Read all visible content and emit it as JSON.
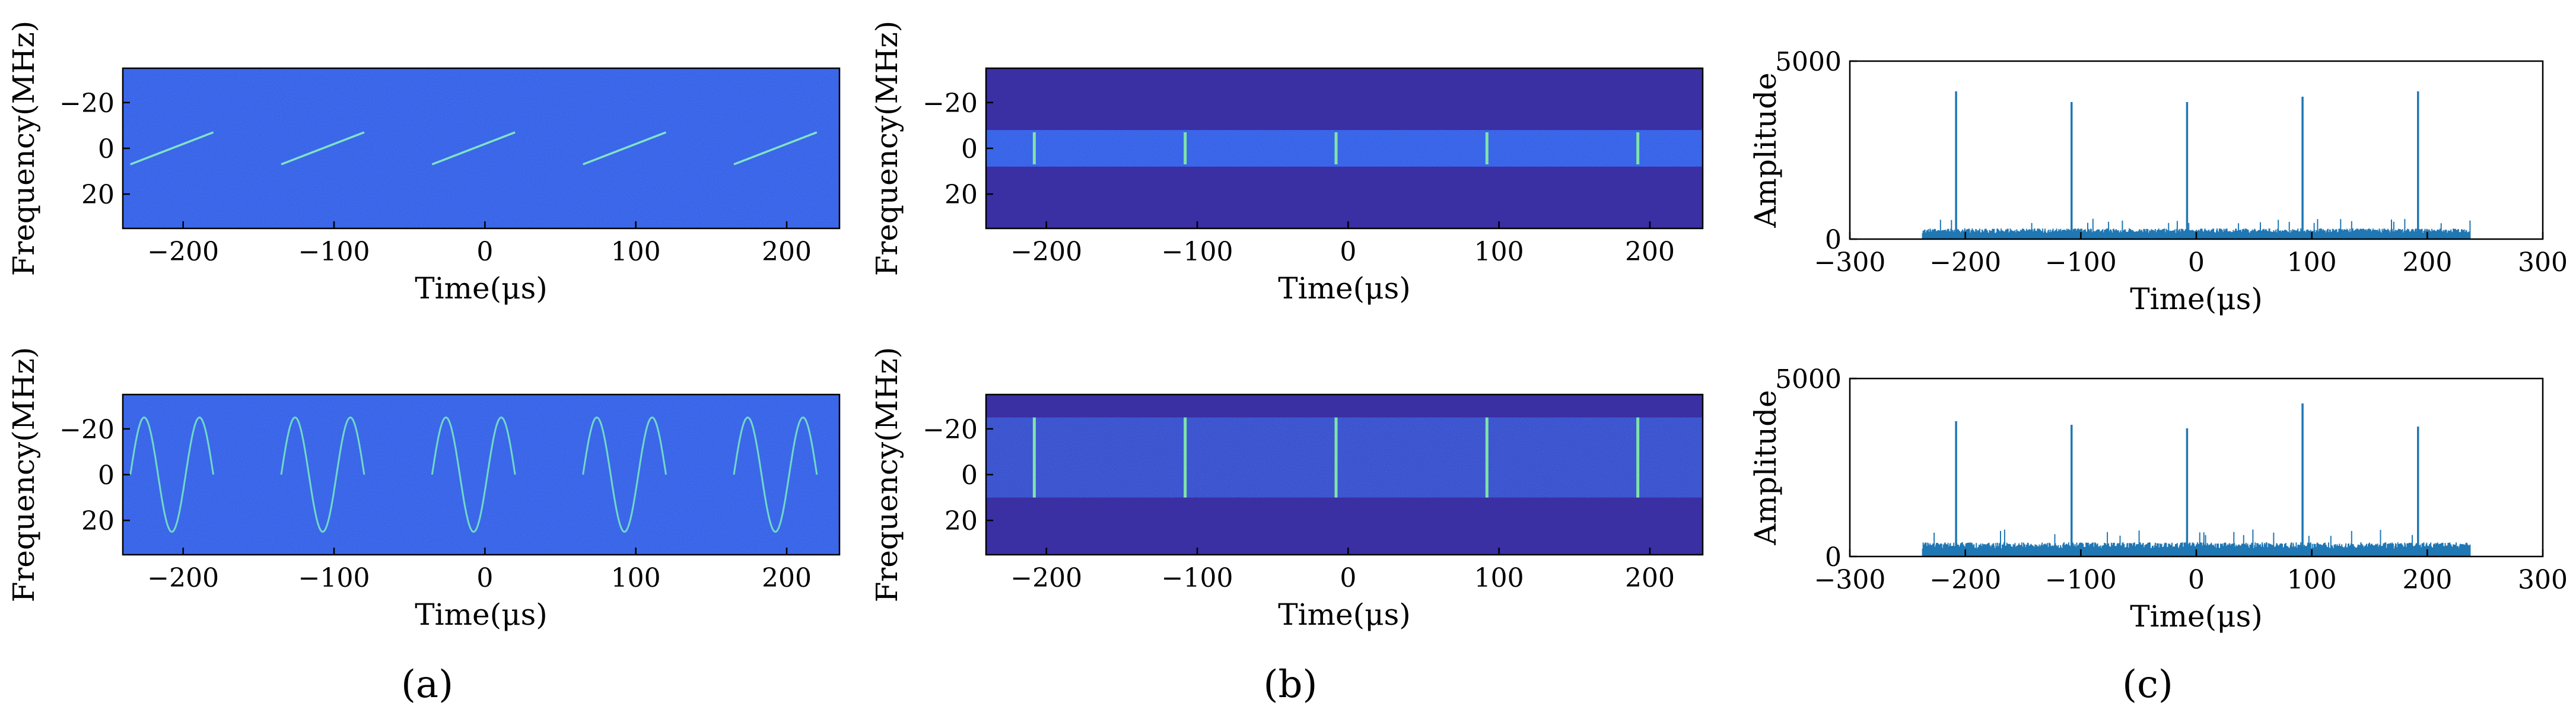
{
  "chart_data": [
    {
      "id": "a1",
      "type": "heatmap",
      "title": "",
      "xlabel": "Time(μs)",
      "ylabel": "Frequency(MHz)",
      "xlim": [
        -240,
        235
      ],
      "ylim": [
        -35,
        35
      ],
      "y_inverted": true,
      "xticks": [
        -200,
        -100,
        0,
        100,
        200
      ],
      "yticks": [
        -20,
        0,
        20
      ],
      "xtick_labels": [
        "−200",
        "−100",
        "0",
        "100",
        "200"
      ],
      "ytick_labels": [
        "−20",
        "0",
        "20"
      ],
      "background": "#2f5be6",
      "features": [
        {
          "kind": "chirp",
          "x": [
            -235,
            -180
          ],
          "y": [
            7,
            -7
          ]
        },
        {
          "kind": "chirp",
          "x": [
            -135,
            -80
          ],
          "y": [
            7,
            -7
          ]
        },
        {
          "kind": "chirp",
          "x": [
            -35,
            20
          ],
          "y": [
            7,
            -7
          ]
        },
        {
          "kind": "chirp",
          "x": [
            65,
            120
          ],
          "y": [
            7,
            -7
          ]
        },
        {
          "kind": "chirp",
          "x": [
            165,
            220
          ],
          "y": [
            7,
            -7
          ]
        }
      ]
    },
    {
      "id": "a2",
      "type": "heatmap",
      "title": "",
      "xlabel": "Time(μs)",
      "ylabel": "Frequency(MHz)",
      "xlim": [
        -240,
        235
      ],
      "ylim": [
        -35,
        35
      ],
      "y_inverted": true,
      "xticks": [
        -200,
        -100,
        0,
        100,
        200
      ],
      "yticks": [
        -20,
        0,
        20
      ],
      "xtick_labels": [
        "−200",
        "−100",
        "0",
        "100",
        "200"
      ],
      "ytick_labels": [
        "−20",
        "0",
        "20"
      ],
      "background": "#2f5be6",
      "features": [
        {
          "kind": "sine",
          "x": [
            -235,
            -180
          ],
          "center": 0,
          "amplitude": 25,
          "cycles": 1.5
        },
        {
          "kind": "sine",
          "x": [
            -135,
            -80
          ],
          "center": 0,
          "amplitude": 25,
          "cycles": 1.5
        },
        {
          "kind": "sine",
          "x": [
            -35,
            20
          ],
          "center": 0,
          "amplitude": 25,
          "cycles": 1.5
        },
        {
          "kind": "sine",
          "x": [
            65,
            120
          ],
          "center": 0,
          "amplitude": 25,
          "cycles": 1.5
        },
        {
          "kind": "sine",
          "x": [
            165,
            220
          ],
          "center": 0,
          "amplitude": 25,
          "cycles": 1.5
        }
      ]
    },
    {
      "id": "b1",
      "type": "heatmap",
      "title": "",
      "xlabel": "Time(μs)",
      "ylabel": "Frequency(MHz)",
      "xlim": [
        -240,
        235
      ],
      "ylim": [
        -35,
        35
      ],
      "y_inverted": true,
      "xticks": [
        -200,
        -100,
        0,
        100,
        200
      ],
      "yticks": [
        -20,
        0,
        20
      ],
      "xtick_labels": [
        "−200",
        "−100",
        "0",
        "100",
        "200"
      ],
      "ytick_labels": [
        "−20",
        "0",
        "20"
      ],
      "background": "#3a2fa3",
      "band": {
        "y": [
          -8,
          8
        ],
        "color": "#2f5be6"
      },
      "features": [
        {
          "kind": "spike",
          "x": -208,
          "y": [
            -7,
            7
          ]
        },
        {
          "kind": "spike",
          "x": -108,
          "y": [
            -7,
            7
          ]
        },
        {
          "kind": "spike",
          "x": -8,
          "y": [
            -7,
            7
          ]
        },
        {
          "kind": "spike",
          "x": 92,
          "y": [
            -7,
            7
          ]
        },
        {
          "kind": "spike",
          "x": 192,
          "y": [
            -7,
            7
          ]
        }
      ]
    },
    {
      "id": "b2",
      "type": "heatmap",
      "title": "",
      "xlabel": "Time(μs)",
      "ylabel": "Frequency(MHz)",
      "xlim": [
        -240,
        235
      ],
      "ylim": [
        -35,
        35
      ],
      "y_inverted": true,
      "xticks": [
        -200,
        -100,
        0,
        100,
        200
      ],
      "yticks": [
        -20,
        0,
        20
      ],
      "xtick_labels": [
        "−200",
        "−100",
        "0",
        "100",
        "200"
      ],
      "ytick_labels": [
        "−20",
        "0",
        "20"
      ],
      "background": "#3a2fa3",
      "band": {
        "y": [
          -25,
          10
        ],
        "color": "#3348c8"
      },
      "features": [
        {
          "kind": "spike",
          "x": -208,
          "y": [
            -25,
            10
          ]
        },
        {
          "kind": "spike",
          "x": -108,
          "y": [
            -25,
            10
          ]
        },
        {
          "kind": "spike",
          "x": -8,
          "y": [
            -25,
            10
          ]
        },
        {
          "kind": "spike",
          "x": 92,
          "y": [
            -25,
            10
          ]
        },
        {
          "kind": "spike",
          "x": 192,
          "y": [
            -25,
            10
          ]
        }
      ]
    },
    {
      "id": "c1",
      "type": "line",
      "title": "",
      "xlabel": "Time(μs)",
      "ylabel": "Amplitude",
      "xlim": [
        -300,
        300
      ],
      "ylim": [
        0,
        5000
      ],
      "xticks": [
        -300,
        -200,
        -100,
        0,
        100,
        200,
        300
      ],
      "yticks": [
        0,
        5000
      ],
      "xtick_labels": [
        "−300",
        "−200",
        "−100",
        "0",
        "100",
        "200",
        "300"
      ],
      "ytick_labels": [
        "0",
        "5000"
      ],
      "color": "#1f77b4",
      "noise": {
        "x": [
          -237,
          237
        ],
        "level": 300
      },
      "peaks": [
        {
          "x": -208,
          "y": 4150
        },
        {
          "x": -108,
          "y": 3850
        },
        {
          "x": -8,
          "y": 3850
        },
        {
          "x": 92,
          "y": 4000
        },
        {
          "x": 192,
          "y": 4150
        }
      ]
    },
    {
      "id": "c2",
      "type": "line",
      "title": "",
      "xlabel": "Time(μs)",
      "ylabel": "Amplitude",
      "xlim": [
        -300,
        300
      ],
      "ylim": [
        0,
        5000
      ],
      "xticks": [
        -300,
        -200,
        -100,
        0,
        100,
        200,
        300
      ],
      "yticks": [
        0,
        5000
      ],
      "xtick_labels": [
        "−300",
        "−200",
        "−100",
        "0",
        "100",
        "200",
        "300"
      ],
      "ytick_labels": [
        "0",
        "5000"
      ],
      "color": "#1f77b4",
      "noise": {
        "x": [
          -237,
          237
        ],
        "level": 400
      },
      "peaks": [
        {
          "x": -208,
          "y": 3800
        },
        {
          "x": -108,
          "y": 3700
        },
        {
          "x": -8,
          "y": 3600
        },
        {
          "x": 92,
          "y": 4300
        },
        {
          "x": 192,
          "y": 3650
        }
      ]
    }
  ],
  "captions": [
    "(a)",
    "(b)",
    "(c)"
  ]
}
